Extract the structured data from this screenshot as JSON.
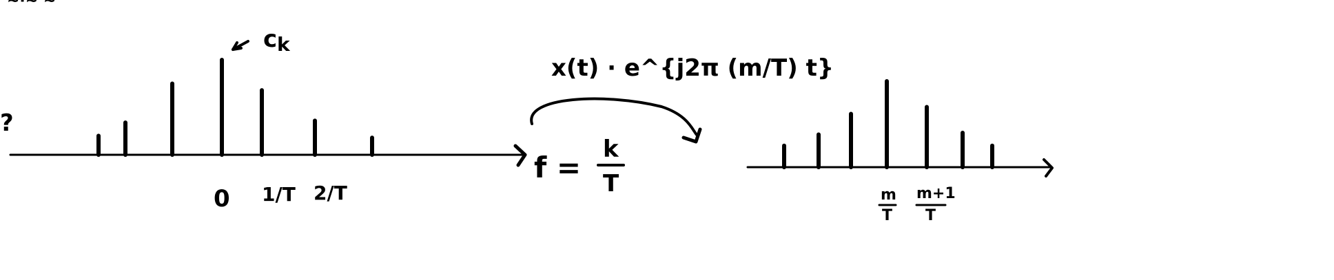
{
  "page": {
    "left_mark": "?",
    "top_strip": "~·~ ~"
  },
  "left_spectrum": {
    "coef_label": "c",
    "coef_sub": "k",
    "xaxis_formula_lhs": "f =",
    "xaxis_formula_num": "k",
    "xaxis_formula_den": "T",
    "tick_zero": "0",
    "tick_one": "1/T",
    "tick_two": "2/T",
    "impulse_heights": [
      0.2,
      0.34,
      0.75,
      1.0,
      0.68,
      0.36,
      0.18
    ]
  },
  "shift": {
    "label": "x(t) · e^{j2π (m/T) t}"
  },
  "right_spectrum": {
    "tick_m_num": "m",
    "tick_m_den": "T",
    "tick_m1_num": "m+1",
    "tick_m1_den": "T",
    "impulse_heights": [
      0.25,
      0.38,
      0.62,
      1.0,
      0.7,
      0.4,
      0.25
    ]
  }
}
